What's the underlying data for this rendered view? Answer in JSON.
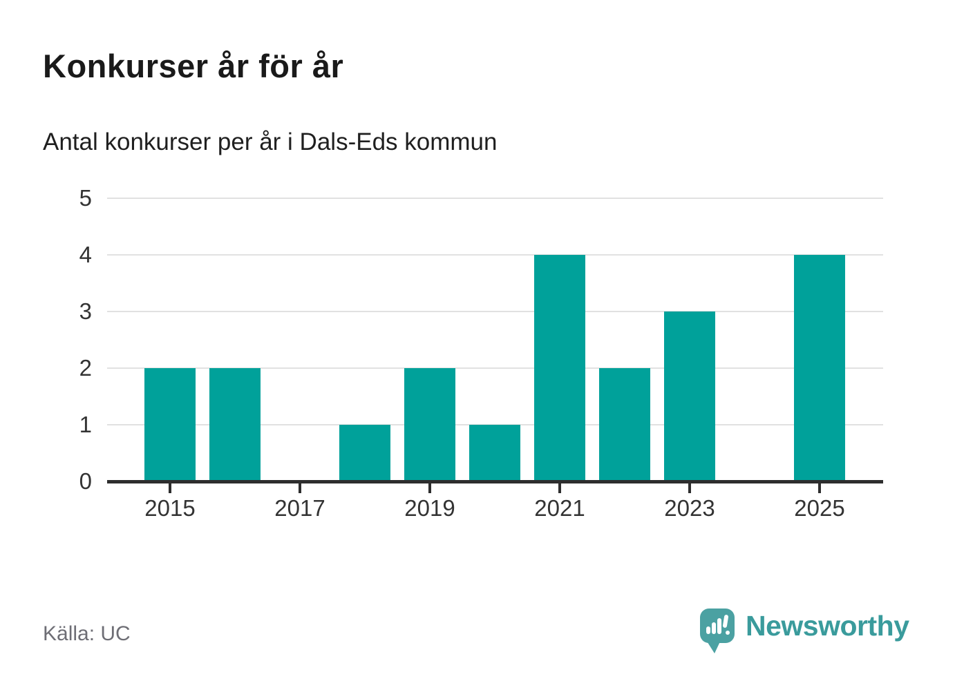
{
  "header": {
    "title": "Konkurser år för år",
    "subtitle": "Antal konkurser per år i Dals-Eds kommun"
  },
  "footer": {
    "source_label": "Källa: UC",
    "brand_name": "Newsworthy",
    "brand_icon": "speech-bubble-bar-chart-exclamation-icon"
  },
  "colors": {
    "bar": "#00a19a",
    "grid": "#e1e1e1",
    "axis": "#2e2e2e",
    "tick_text": "#333333",
    "title_text": "#1a1a1a",
    "muted_text": "#6e6e75",
    "brand_teal": "#3a9b9c",
    "logo_bg": "#4ba1a2"
  },
  "chart_data": {
    "type": "bar",
    "title": "Konkurser år för år",
    "subtitle": "Antal konkurser per år i Dals-Eds kommun",
    "categories": [
      2015,
      2016,
      2017,
      2018,
      2019,
      2020,
      2021,
      2022,
      2023,
      2024,
      2025
    ],
    "values": [
      2,
      2,
      0,
      1,
      2,
      1,
      4,
      2,
      3,
      0,
      4
    ],
    "xlabel": "",
    "ylabel": "",
    "ylim": [
      0,
      5
    ],
    "yticks": [
      0,
      1,
      2,
      3,
      4,
      5
    ],
    "xtick_labels": [
      "2015",
      "2017",
      "2019",
      "2021",
      "2023",
      "2025"
    ],
    "grid": true,
    "legend": false,
    "bar_color": "#00a19a",
    "source": "Källa: UC"
  }
}
